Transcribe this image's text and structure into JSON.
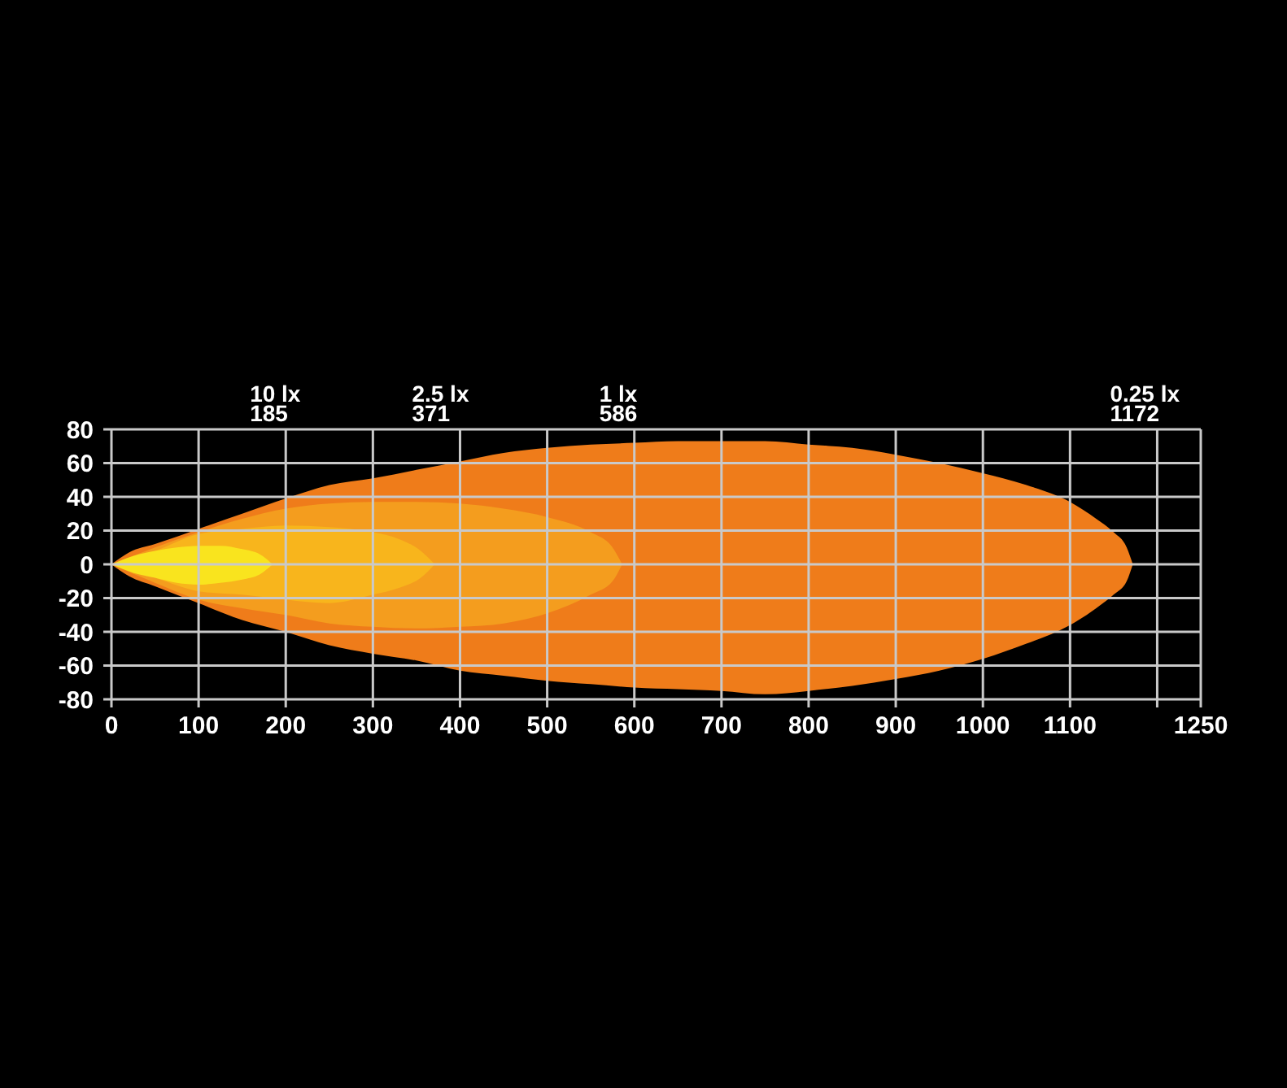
{
  "chart_data": {
    "type": "area",
    "xlim": [
      0,
      1250
    ],
    "ylim": [
      -80,
      80
    ],
    "xticks": [
      0,
      100,
      200,
      300,
      400,
      500,
      600,
      700,
      800,
      900,
      1000,
      1100,
      {
        "value": 1200,
        "label": null
      },
      1250
    ],
    "yticks": [
      80,
      60,
      40,
      20,
      0,
      -20,
      -40,
      -60,
      -80
    ],
    "grid": true,
    "series": [
      {
        "color": "#f9e41e",
        "x": [
          0,
          25,
          50,
          75,
          100,
          125,
          150,
          170,
          185
        ],
        "values": [
          0,
          5,
          8,
          10,
          11,
          11,
          9,
          6,
          0
        ]
      },
      {
        "color": "#f9e41e",
        "x": [
          0,
          25,
          50,
          75,
          100,
          125,
          150,
          170,
          185
        ],
        "values": [
          0,
          -5,
          -8,
          -11,
          -12,
          -11,
          -9,
          -6,
          0
        ]
      },
      {
        "color": "#f8b51c",
        "x": [
          0,
          50,
          100,
          150,
          200,
          250,
          300,
          330,
          355,
          371
        ],
        "values": [
          0,
          8,
          18,
          21,
          23,
          22,
          19,
          15,
          8,
          0
        ]
      },
      {
        "color": "#f8b51c",
        "x": [
          0,
          50,
          100,
          150,
          200,
          250,
          300,
          330,
          355,
          371
        ],
        "values": [
          0,
          -8,
          -16,
          -18,
          -21,
          -23,
          -18,
          -14,
          -8,
          0
        ]
      },
      {
        "color": "#f49d1e",
        "x": [
          0,
          50,
          100,
          150,
          200,
          250,
          300,
          350,
          400,
          450,
          500,
          550,
          575,
          586
        ],
        "values": [
          0,
          10,
          19,
          27,
          33,
          36,
          37,
          37,
          36,
          33,
          28,
          19,
          10,
          0
        ]
      },
      {
        "color": "#f49d1e",
        "x": [
          0,
          50,
          100,
          150,
          200,
          250,
          300,
          350,
          400,
          450,
          500,
          550,
          575,
          586
        ],
        "values": [
          0,
          -11,
          -21,
          -26,
          -30,
          -35,
          -37,
          -38,
          -37,
          -35,
          -29,
          -18,
          -10,
          0
        ]
      },
      {
        "color": "#ef7c1a",
        "x": [
          0,
          20,
          50,
          100,
          150,
          200,
          250,
          300,
          350,
          400,
          450,
          500,
          550,
          600,
          650,
          700,
          750,
          800,
          850,
          900,
          950,
          1000,
          1050,
          1100,
          1130,
          1150,
          1165,
          1172
        ],
        "values": [
          0,
          7,
          12,
          21,
          30,
          39,
          47,
          51,
          56,
          61,
          66,
          69,
          71,
          72,
          73,
          73,
          73,
          71,
          69,
          65,
          60,
          54,
          47,
          37,
          27,
          19,
          10,
          0
        ]
      },
      {
        "color": "#ef7c1a",
        "x": [
          0,
          20,
          50,
          100,
          150,
          200,
          250,
          300,
          350,
          400,
          450,
          500,
          550,
          600,
          650,
          700,
          750,
          800,
          850,
          900,
          950,
          1000,
          1050,
          1100,
          1130,
          1150,
          1165,
          1172
        ],
        "values": [
          0,
          -7,
          -13,
          -23,
          -33,
          -40,
          -48,
          -53,
          -57,
          -63,
          -66,
          -69,
          -71,
          -73,
          -74,
          -75,
          -77,
          -75,
          -72,
          -68,
          -63,
          -56,
          -47,
          -36,
          -26,
          -18,
          -10,
          0
        ]
      }
    ],
    "annotations": [
      "10 lx\n185",
      "2.5 lx\n371",
      "1 lx\n586",
      "0.25 lx\n1172"
    ]
  }
}
